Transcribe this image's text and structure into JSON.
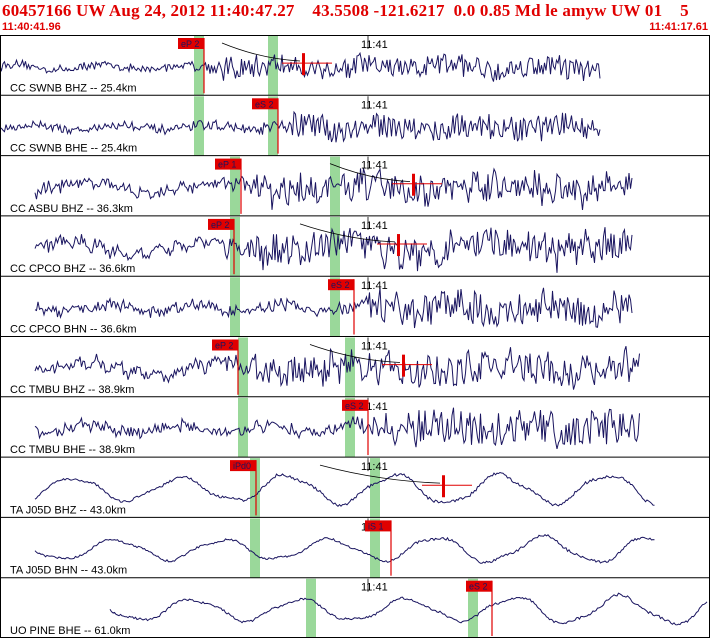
{
  "header": {
    "title": "60457166 UW Aug 24, 2012 11:40:47.27    43.5508 -121.6217  0.0 0.85 Md le amyw UW 01    5",
    "start_time": "11:40:41.96",
    "end_time": "11:41:17.61"
  },
  "colors": {
    "trace": "#1a1560",
    "pick": "#e00000",
    "window": "#9ad89a",
    "frame": "#000000"
  },
  "minute_label": "11:41",
  "traces": [
    {
      "label": "CC SWNB BHZ -- 25.4km",
      "pick_label": "eP 2",
      "style": "hf",
      "amp": 0.55
    },
    {
      "label": "CC SWNB BHE -- 25.4km",
      "pick_label": "eS 2",
      "style": "hf",
      "amp": 0.6
    },
    {
      "label": "CC ASBU BHZ -- 36.3km",
      "pick_label": "eP 1",
      "style": "mix",
      "amp": 0.8
    },
    {
      "label": "CC CPCO BHZ -- 36.6km",
      "pick_label": "eP 2",
      "style": "mix",
      "amp": 0.85
    },
    {
      "label": "CC CPCO BHN -- 36.6km",
      "pick_label": "eS 2",
      "style": "hf",
      "amp": 0.8
    },
    {
      "label": "CC TMBU BHZ -- 38.9km",
      "pick_label": "eP 2",
      "style": "mix",
      "amp": 0.85
    },
    {
      "label": "CC TMBU BHE -- 38.9km",
      "pick_label": "eS 2",
      "style": "hf",
      "amp": 0.85
    },
    {
      "label": "TA J05D BHZ -- 43.0km",
      "pick_label": "iPd0",
      "style": "lf",
      "amp": 0.8
    },
    {
      "label": "TA J05D BHN -- 43.0km",
      "pick_label": "iS 1",
      "style": "lf",
      "amp": 0.7
    },
    {
      "label": "UO PINE BHE -- 61.0km",
      "pick_label": "eS 2",
      "style": "lf",
      "amp": 0.75
    }
  ]
}
